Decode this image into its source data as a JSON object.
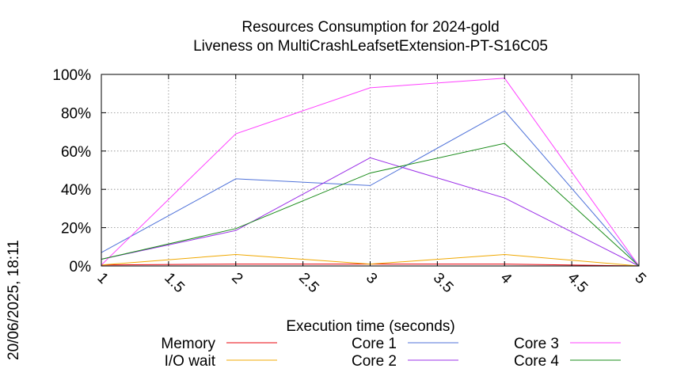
{
  "stamp": "20/06/2025, 18:11",
  "chart_data": {
    "type": "line",
    "title": "Resources Consumption for 2024-gold",
    "subtitle": "Liveness on MultiCrashLeafsetExtension-PT-S16C05",
    "xlabel": "Execution time (seconds)",
    "ylabel": "",
    "xlim": [
      1,
      5
    ],
    "ylim": [
      0,
      100
    ],
    "x_ticks": [
      "1",
      "1.5",
      "2",
      "2.5",
      "3",
      "3.5",
      "4",
      "4.5",
      "5"
    ],
    "y_ticks": [
      "0%",
      "20%",
      "40%",
      "60%",
      "80%",
      "100%"
    ],
    "grid": true,
    "legend_position": "bottom",
    "x": [
      1,
      2,
      3,
      4,
      5
    ],
    "series": [
      {
        "name": "Memory",
        "color": "#e8000b",
        "values": [
          0.5,
          1,
          1,
          1,
          0
        ]
      },
      {
        "name": "I/O wait",
        "color": "#f0a800",
        "values": [
          0.5,
          6,
          1,
          6,
          0
        ]
      },
      {
        "name": "Core 1",
        "color": "#4f72d9",
        "values": [
          7,
          45.5,
          42,
          81,
          0
        ]
      },
      {
        "name": "Core 2",
        "color": "#9b30e8",
        "values": [
          3.5,
          18.5,
          56.5,
          35.5,
          0
        ]
      },
      {
        "name": "Core 3",
        "color": "#ff40ff",
        "values": [
          0.5,
          69,
          93,
          98,
          0
        ]
      },
      {
        "name": "Core 4",
        "color": "#1a8c1a",
        "values": [
          3.5,
          19.5,
          48.5,
          64,
          0
        ]
      }
    ]
  }
}
